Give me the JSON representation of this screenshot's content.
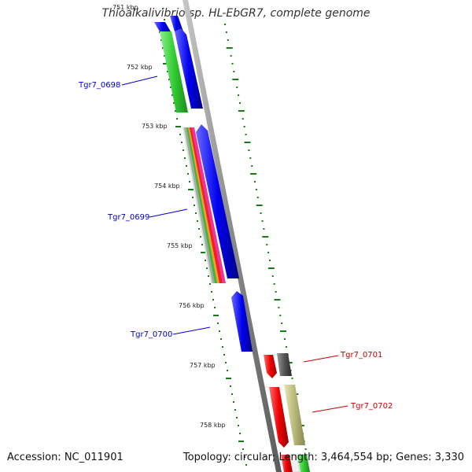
{
  "title": "Thioalkalivibrio sp. HL-EbGR7, complete genome",
  "accession": "Accession: NC_011901",
  "summary": "Topology: circular; Length: 3,464,554 bp; Genes: 3,330",
  "ticks": [
    "751 kbp",
    "752 kbp",
    "753 kbp",
    "754 kbp",
    "755 kbp",
    "756 kbp",
    "757 kbp",
    "758 kbp"
  ],
  "genes": [
    {
      "name": "Tgr7_0698",
      "color": "#0000cc"
    },
    {
      "name": "Tgr7_0699",
      "color": "#0000cc"
    },
    {
      "name": "Tgr7_0700",
      "color": "#0000cc"
    },
    {
      "name": "Tgr7_0701",
      "color": "#cc0000"
    },
    {
      "name": "Tgr7_0702",
      "color": "#cc0000"
    }
  ],
  "colors": {
    "forward_cds": "#0000ee",
    "reverse_cds": "#ee0000",
    "backbone": "#8a8a8a",
    "tick": "#1a7a1a",
    "feature_green": "#33cc33",
    "feature_olive": "#b8b87a",
    "feature_gray": "#555555"
  }
}
